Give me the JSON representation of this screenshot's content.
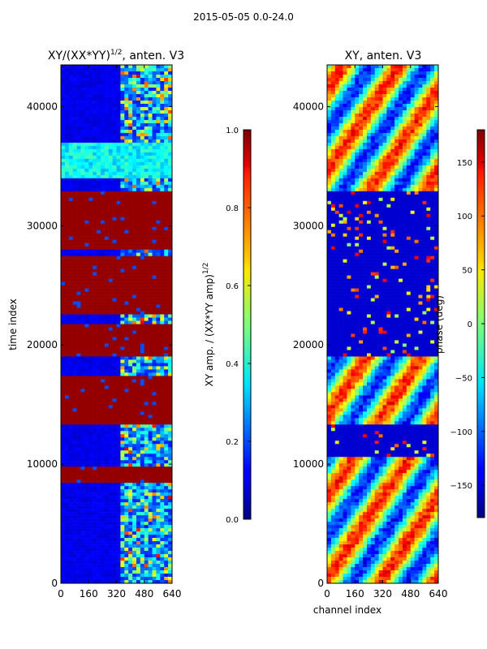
{
  "suptitle": "2015-05-05 0.0-24.0",
  "chart_data": [
    {
      "type": "heatmap",
      "title_prefix": "XY/(XX*YY)",
      "title_exponent": "1/2",
      "title_suffix": ", anten. V3",
      "xlabel": "",
      "ylabel": "time index",
      "xlim": [
        0,
        640
      ],
      "ylim": [
        0,
        43500
      ],
      "xticks": [
        0,
        160,
        320,
        480,
        640
      ],
      "yticks": [
        0,
        10000,
        20000,
        30000,
        40000
      ],
      "colorbar": {
        "label_prefix": "XY amp. / (XX*YY amp)",
        "label_exponent": "1/2",
        "range": [
          0.0,
          1.0
        ],
        "ticks": [
          "0.0",
          "0.2",
          "0.4",
          "0.6",
          "0.8",
          "1.0"
        ],
        "colormap": "jet"
      },
      "saturated_time_bands": [
        [
          8500,
          9800
        ],
        [
          13200,
          17500
        ],
        [
          19000,
          21700
        ],
        [
          22500,
          27500
        ],
        [
          28000,
          32800
        ]
      ],
      "high_variance_channel_range": [
        320,
        640
      ],
      "background_value": 0.08
    },
    {
      "type": "heatmap",
      "title": "XY, anten. V3",
      "xlabel": "channel index",
      "ylabel": "",
      "xlim": [
        0,
        640
      ],
      "ylim": [
        0,
        43500
      ],
      "xticks": [
        0,
        160,
        320,
        480,
        640
      ],
      "yticks": [
        0,
        10000,
        20000,
        30000,
        40000
      ],
      "colorbar": {
        "label": "phase (deg)",
        "range": [
          -180,
          180
        ],
        "ticks": [
          "-150",
          "-100",
          "-50",
          "0",
          "50",
          "100",
          "150"
        ],
        "colormap": "jet"
      },
      "low_phase_time_bands": [
        [
          10500,
          13200
        ],
        [
          19000,
          32800
        ]
      ],
      "varying_phase_time_bands": [
        [
          0,
          10500
        ],
        [
          13200,
          19000
        ],
        [
          32800,
          43500
        ]
      ]
    }
  ]
}
